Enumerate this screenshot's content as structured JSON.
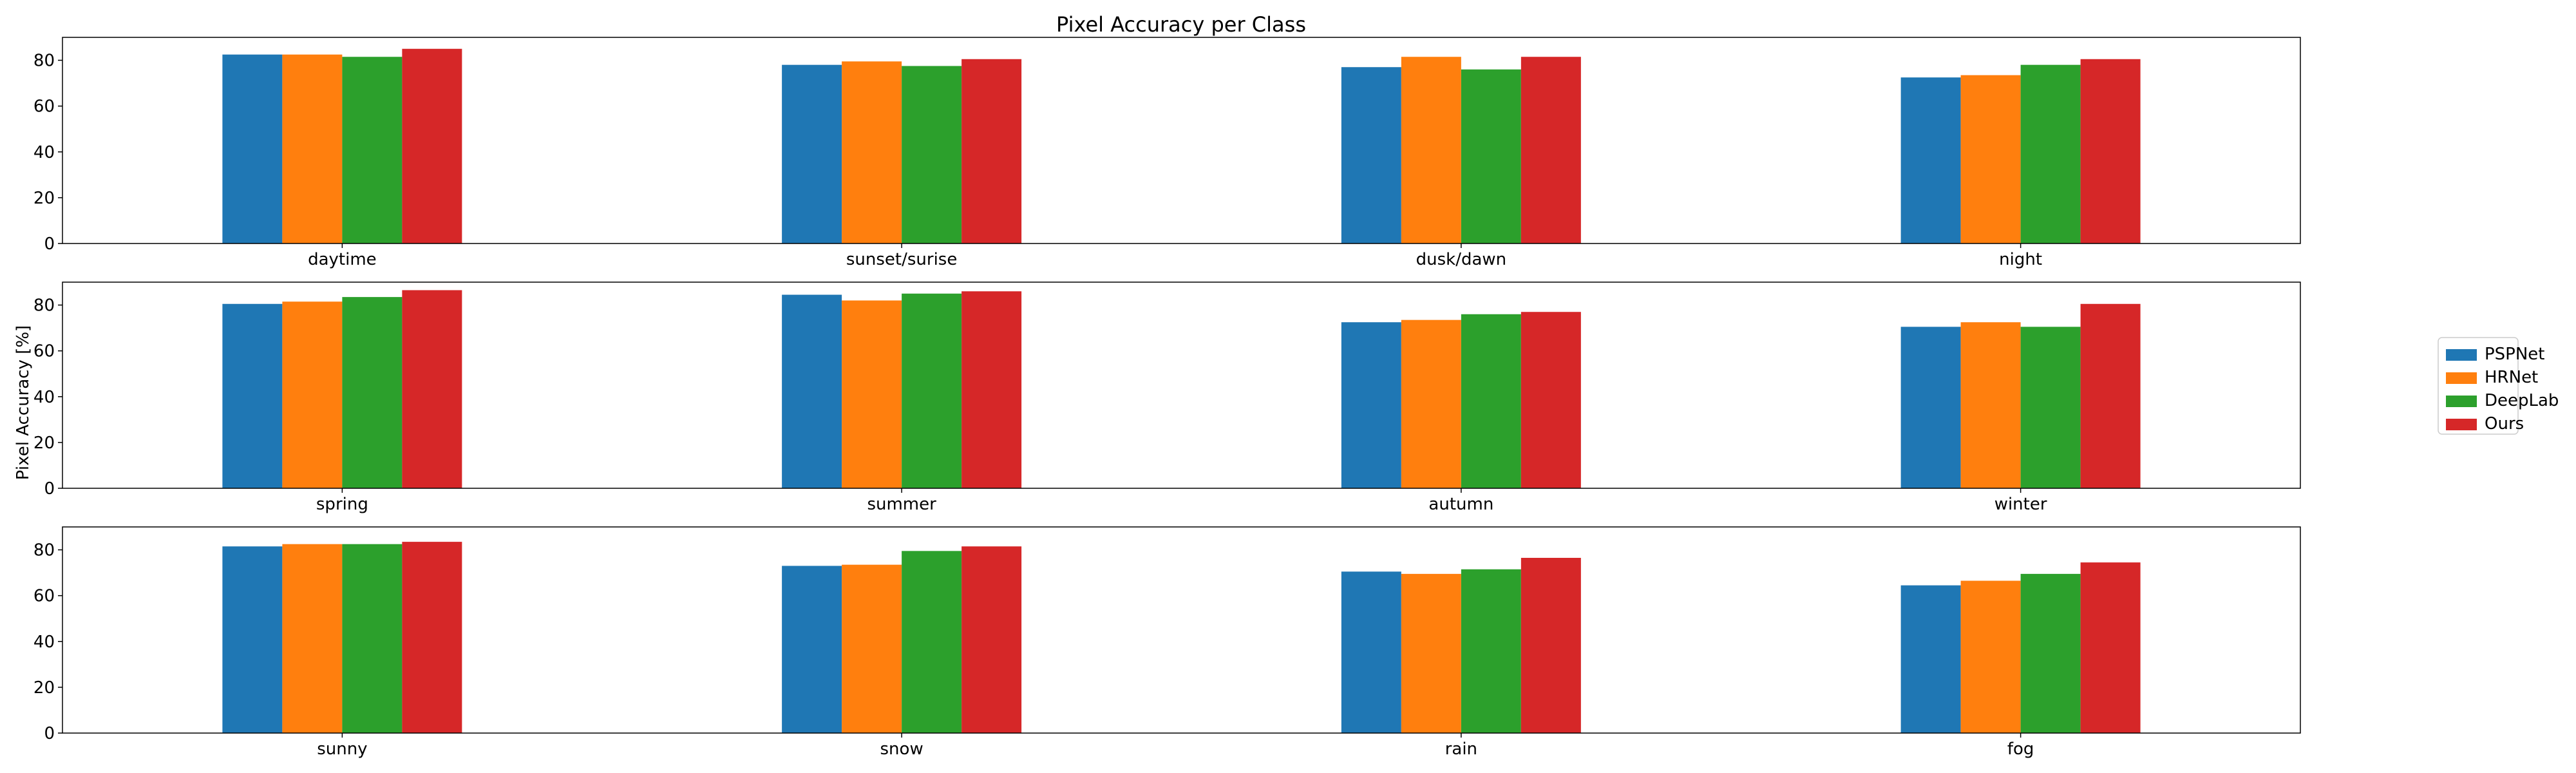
{
  "chart_data": {
    "type": "bar",
    "title": "Pixel Accuracy per Class",
    "ylabel": "Pixel Accuracy [%]",
    "ylim": [
      0,
      90
    ],
    "yticks": [
      0,
      20,
      40,
      60,
      80
    ],
    "grid": false,
    "legend_position": "right",
    "series_meta": [
      {
        "name": "PSPNet",
        "color": "#1f77b4"
      },
      {
        "name": "HRNet",
        "color": "#ff7f0e"
      },
      {
        "name": "DeepLab",
        "color": "#2ca02c"
      },
      {
        "name": "Ours",
        "color": "#d62728"
      }
    ],
    "panels": [
      {
        "categories": [
          "daytime",
          "sunset/surise",
          "dusk/dawn",
          "night"
        ],
        "series": [
          {
            "name": "PSPNet",
            "values": [
              82.5,
              78,
              77,
              72.5
            ]
          },
          {
            "name": "HRNet",
            "values": [
              82.5,
              79.5,
              81.5,
              73.5
            ]
          },
          {
            "name": "DeepLab",
            "values": [
              81.5,
              77.5,
              76,
              78
            ]
          },
          {
            "name": "Ours",
            "values": [
              85,
              80.5,
              81.5,
              80.5
            ]
          }
        ]
      },
      {
        "categories": [
          "spring",
          "summer",
          "autumn",
          "winter"
        ],
        "series": [
          {
            "name": "PSPNet",
            "values": [
              80.5,
              84.5,
              72.5,
              70.5
            ]
          },
          {
            "name": "HRNet",
            "values": [
              81.5,
              82,
              73.5,
              72.5
            ]
          },
          {
            "name": "DeepLab",
            "values": [
              83.5,
              85,
              76,
              70.5
            ]
          },
          {
            "name": "Ours",
            "values": [
              86.5,
              86,
              77,
              80.5
            ]
          }
        ]
      },
      {
        "categories": [
          "sunny",
          "snow",
          "rain",
          "fog"
        ],
        "series": [
          {
            "name": "PSPNet",
            "values": [
              81.5,
              73,
              70.5,
              64.5
            ]
          },
          {
            "name": "HRNet",
            "values": [
              82.5,
              73.5,
              69.5,
              66.5
            ]
          },
          {
            "name": "DeepLab",
            "values": [
              82.5,
              79.5,
              71.5,
              69.5
            ]
          },
          {
            "name": "Ours",
            "values": [
              83.5,
              81.5,
              76.5,
              74.5
            ]
          }
        ]
      }
    ]
  }
}
